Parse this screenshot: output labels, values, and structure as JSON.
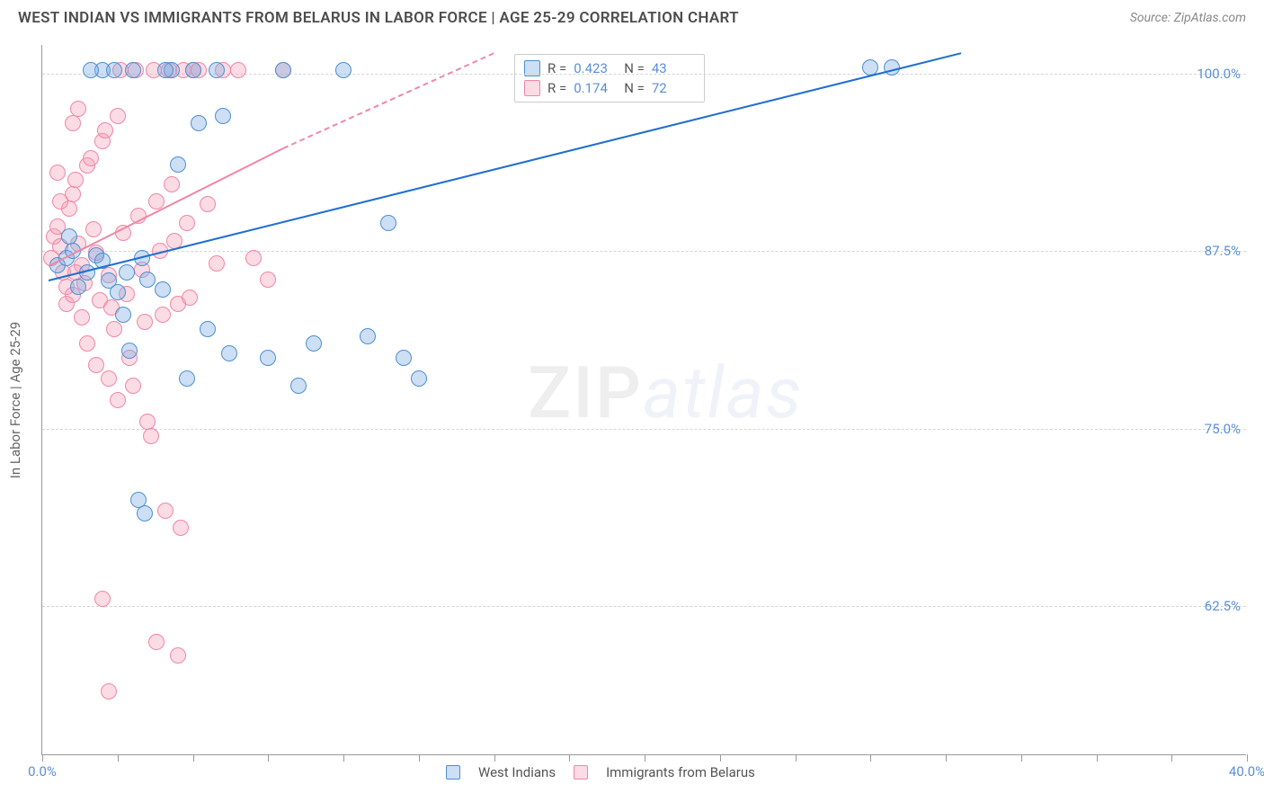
{
  "header": {
    "title": "WEST INDIAN VS IMMIGRANTS FROM BELARUS IN LABOR FORCE | AGE 25-29 CORRELATION CHART",
    "source_prefix": "Source: ",
    "source_name": "ZipAtlas.com"
  },
  "ylabel": "In Labor Force | Age 25-29",
  "xlim": [
    0,
    40
  ],
  "ylim": [
    52,
    102
  ],
  "y_gridlines": [
    62.5,
    75.0,
    87.5,
    100.0
  ],
  "y_tick_labels": [
    "62.5%",
    "75.0%",
    "87.5%",
    "100.0%"
  ],
  "x_ticks": [
    0,
    10,
    20,
    30,
    40
  ],
  "x_tick_labels": [
    "0.0%",
    "",
    "",
    "",
    "40.0%"
  ],
  "x_minor_ticks": [
    0,
    2.5,
    5,
    7.5,
    10,
    12.5,
    15,
    17.5,
    20,
    22.5,
    25,
    27.5,
    30,
    32.5,
    35,
    37.5,
    40
  ],
  "grid_color": "#d5d5d5",
  "axis_color": "#999999",
  "label_color": "#5a8fd6",
  "marker_radius": 9,
  "marker_stroke": 1.5,
  "series": {
    "blue": {
      "label": "West Indians",
      "fill": "rgba(120,170,225,0.38)",
      "stroke": "#4f8fd0",
      "r_value": "0.423",
      "n_value": "43",
      "trend": {
        "x1": 0.2,
        "y1": 85.5,
        "x2": 30.5,
        "y2": 101.5,
        "dashed_from_x": 30.5
      },
      "points": [
        [
          0.5,
          86.5
        ],
        [
          0.8,
          87.0
        ],
        [
          1.0,
          87.5
        ],
        [
          1.2,
          85.0
        ],
        [
          1.5,
          86.0
        ],
        [
          1.8,
          87.2
        ],
        [
          2.0,
          86.8
        ],
        [
          2.2,
          85.4
        ],
        [
          2.5,
          84.6
        ],
        [
          2.8,
          86.0
        ],
        [
          3.0,
          100.2
        ],
        [
          3.3,
          87.0
        ],
        [
          3.5,
          85.5
        ],
        [
          4.0,
          84.8
        ],
        [
          4.3,
          100.2
        ],
        [
          4.5,
          93.6
        ],
        [
          4.8,
          78.5
        ],
        [
          5.0,
          100.2
        ],
        [
          5.2,
          96.5
        ],
        [
          2.7,
          83.0
        ],
        [
          2.9,
          80.5
        ],
        [
          3.2,
          70.0
        ],
        [
          3.4,
          69.0
        ],
        [
          5.5,
          82.0
        ],
        [
          5.8,
          100.2
        ],
        [
          6.0,
          97.0
        ],
        [
          6.2,
          80.3
        ],
        [
          7.5,
          80.0
        ],
        [
          8.0,
          100.2
        ],
        [
          8.5,
          78.0
        ],
        [
          9.0,
          81.0
        ],
        [
          10.0,
          100.2
        ],
        [
          10.8,
          81.5
        ],
        [
          11.5,
          89.5
        ],
        [
          12.0,
          80.0
        ],
        [
          12.5,
          78.5
        ],
        [
          27.5,
          100.4
        ],
        [
          28.2,
          100.4
        ],
        [
          2.0,
          100.2
        ],
        [
          2.4,
          100.2
        ],
        [
          4.1,
          100.2
        ],
        [
          1.6,
          100.2
        ],
        [
          0.9,
          88.5
        ]
      ]
    },
    "pink": {
      "label": "Immigrants from Belarus",
      "fill": "rgba(245,160,185,0.38)",
      "stroke": "#ef87a6",
      "r_value": "0.174",
      "n_value": "72",
      "trend": {
        "x1": 0.2,
        "y1": 86.5,
        "x2": 8.0,
        "y2": 94.8,
        "dashed_to_x": 15.0,
        "dashed_to_y": 101.5
      },
      "points": [
        [
          0.3,
          87.0
        ],
        [
          0.4,
          88.5
        ],
        [
          0.5,
          89.2
        ],
        [
          0.6,
          87.8
        ],
        [
          0.7,
          86.0
        ],
        [
          0.8,
          85.0
        ],
        [
          0.9,
          90.5
        ],
        [
          1.0,
          91.5
        ],
        [
          1.1,
          92.5
        ],
        [
          1.2,
          88.0
        ],
        [
          1.3,
          86.5
        ],
        [
          1.4,
          85.2
        ],
        [
          1.5,
          93.5
        ],
        [
          1.6,
          94.0
        ],
        [
          1.7,
          89.0
        ],
        [
          1.8,
          87.4
        ],
        [
          1.9,
          84.0
        ],
        [
          2.0,
          95.2
        ],
        [
          2.1,
          96.0
        ],
        [
          2.2,
          85.8
        ],
        [
          2.3,
          83.5
        ],
        [
          2.4,
          82.0
        ],
        [
          2.5,
          97.0
        ],
        [
          2.6,
          100.2
        ],
        [
          2.7,
          88.8
        ],
        [
          2.8,
          84.5
        ],
        [
          2.9,
          80.0
        ],
        [
          3.0,
          78.0
        ],
        [
          3.1,
          100.2
        ],
        [
          3.2,
          90.0
        ],
        [
          3.3,
          86.2
        ],
        [
          3.4,
          82.5
        ],
        [
          3.5,
          75.5
        ],
        [
          3.6,
          74.5
        ],
        [
          3.7,
          100.2
        ],
        [
          3.8,
          91.0
        ],
        [
          3.9,
          87.5
        ],
        [
          4.0,
          83.0
        ],
        [
          4.1,
          69.2
        ],
        [
          4.2,
          100.2
        ],
        [
          4.3,
          92.2
        ],
        [
          4.4,
          88.2
        ],
        [
          4.5,
          83.8
        ],
        [
          4.6,
          68.0
        ],
        [
          4.7,
          100.2
        ],
        [
          4.8,
          89.5
        ],
        [
          4.9,
          84.2
        ],
        [
          5.0,
          100.2
        ],
        [
          5.2,
          100.2
        ],
        [
          5.5,
          90.8
        ],
        [
          5.8,
          86.6
        ],
        [
          6.0,
          100.2
        ],
        [
          6.5,
          100.2
        ],
        [
          7.0,
          87.0
        ],
        [
          7.5,
          85.5
        ],
        [
          8.0,
          100.2
        ],
        [
          1.0,
          96.5
        ],
        [
          1.2,
          97.5
        ],
        [
          0.5,
          93.0
        ],
        [
          0.6,
          91.0
        ],
        [
          2.2,
          78.5
        ],
        [
          2.5,
          77.0
        ],
        [
          1.8,
          79.5
        ],
        [
          1.5,
          81.0
        ],
        [
          1.3,
          82.8
        ],
        [
          2.0,
          63.0
        ],
        [
          3.8,
          60.0
        ],
        [
          4.5,
          59.0
        ],
        [
          2.2,
          56.5
        ],
        [
          0.8,
          83.8
        ],
        [
          1.0,
          84.4
        ],
        [
          1.1,
          86.0
        ]
      ]
    }
  },
  "legend_inset": {
    "r_label": "R =",
    "n_label": "N ="
  },
  "watermark": {
    "a": "ZIP",
    "b": "atlas"
  },
  "legend_bottom": {
    "items": [
      "West Indians",
      "Immigrants from Belarus"
    ]
  }
}
